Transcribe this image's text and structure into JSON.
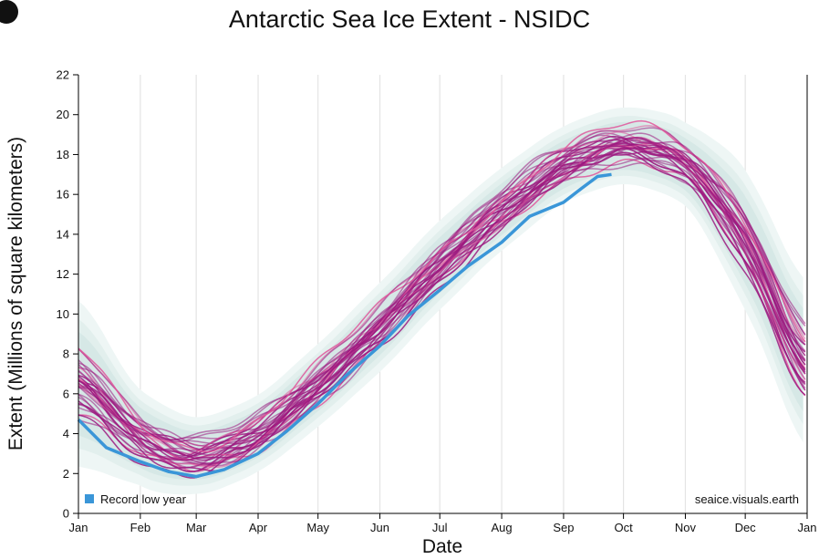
{
  "chart_data": {
    "type": "line",
    "title": "Antarctic Sea Ice Extent - NSIDC",
    "xlabel": "Date",
    "ylabel": "Extent (Millions of square kilometers)",
    "x_ticks": [
      "Jan",
      "Feb",
      "Mar",
      "Apr",
      "May",
      "Jun",
      "Jul",
      "Aug",
      "Sep",
      "Oct",
      "Nov",
      "Dec",
      "Jan"
    ],
    "y_ticks": [
      0,
      2,
      4,
      6,
      8,
      10,
      12,
      14,
      16,
      18,
      20,
      22
    ],
    "ylim": [
      0,
      22
    ],
    "grid": "vertical at month boundaries",
    "legend": {
      "position": "bottom-left",
      "entries": [
        "Record low year"
      ]
    },
    "credit": "seaice.visuals.earth",
    "colors": {
      "record_low": "#3a96d8",
      "past_years": "#9c1a80",
      "recent_years": "#e0559a",
      "envelope": "#d6e8e6",
      "grid": "#e4e4e4"
    },
    "climatology": {
      "month_start_mean_extent": [
        6.8,
        3.6,
        2.7,
        3.9,
        6.4,
        9.3,
        12.5,
        15.3,
        17.6,
        18.6,
        17.8,
        14.0,
        6.8
      ],
      "envelope_halfwidth": [
        2.6,
        1.5,
        1.2,
        1.2,
        1.3,
        1.4,
        1.4,
        1.3,
        1.2,
        1.2,
        1.3,
        2.2,
        2.6
      ]
    },
    "series": [
      {
        "name": "Record low year",
        "points": [
          [
            "Jan 1",
            4.7
          ],
          [
            "Jan 15",
            3.3
          ],
          [
            "Feb 1",
            2.6
          ],
          [
            "Feb 15",
            2.1
          ],
          [
            "Mar 1",
            1.85
          ],
          [
            "Mar 15",
            2.2
          ],
          [
            "Apr 1",
            3.0
          ],
          [
            "Apr 15",
            4.1
          ],
          [
            "May 1",
            5.5
          ],
          [
            "May 15",
            6.9
          ],
          [
            "Jun 1",
            8.4
          ],
          [
            "Jun 15",
            9.9
          ],
          [
            "Jul 1",
            11.2
          ],
          [
            "Jul 15",
            12.4
          ],
          [
            "Aug 1",
            13.6
          ],
          [
            "Aug 15",
            14.9
          ],
          [
            "Sep 1",
            15.6
          ],
          [
            "Sep 10",
            16.3
          ],
          [
            "Sep 18",
            16.9
          ],
          [
            "Sep 25",
            17.0
          ]
        ]
      }
    ]
  }
}
